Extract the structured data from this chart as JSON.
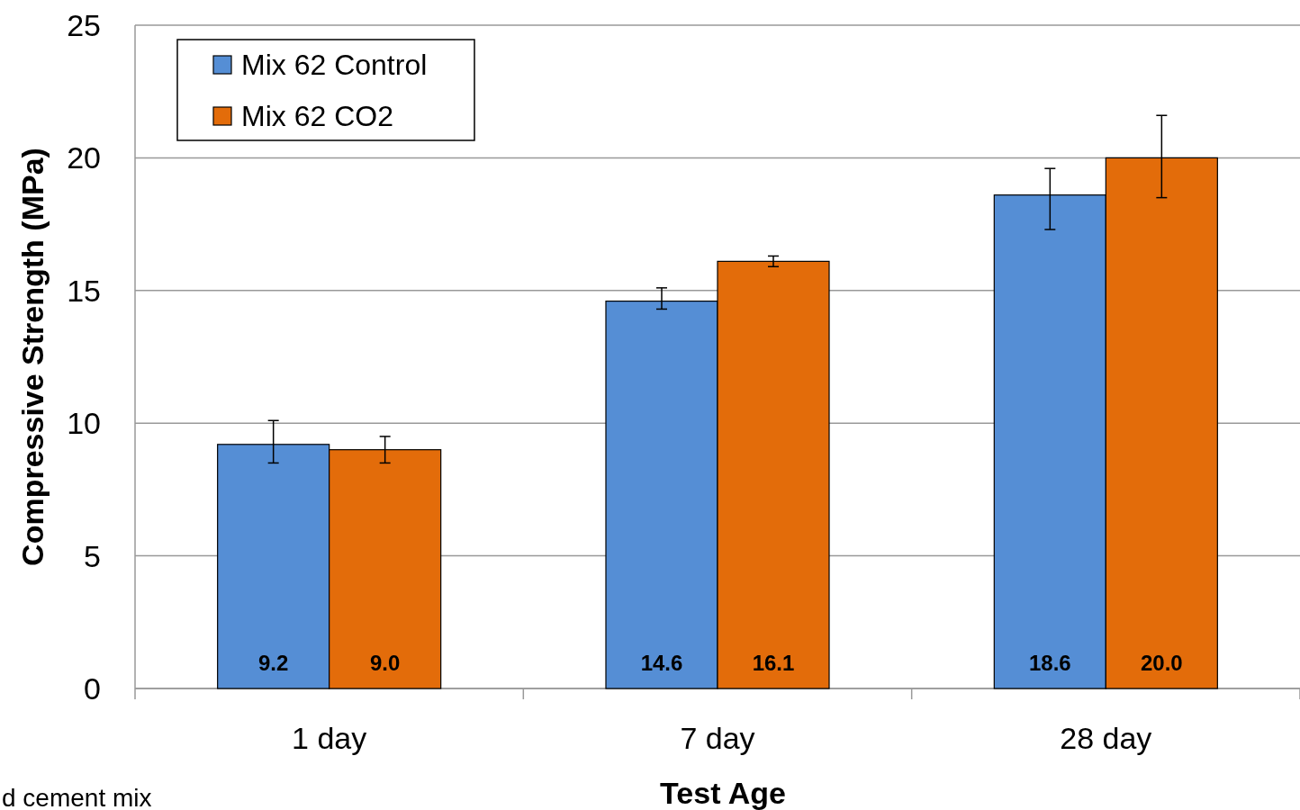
{
  "chart_data": {
    "type": "bar",
    "xlabel": "Test Age",
    "ylabel": "Compressive Strength (MPa)",
    "categories": [
      "1 day",
      "7 day",
      "28 day"
    ],
    "series": [
      {
        "name": "Mix 62 Control",
        "color": "#558ed5",
        "values": [
          9.2,
          14.6,
          18.6
        ],
        "value_labels": [
          "9.2",
          "14.6",
          "18.6"
        ],
        "errors": [
          [
            8.5,
            10.1
          ],
          [
            14.3,
            15.1
          ],
          [
            17.3,
            19.6
          ]
        ]
      },
      {
        "name": "Mix 62 CO2",
        "color": "#e36c0a",
        "values": [
          9.0,
          16.1,
          20.0
        ],
        "value_labels": [
          "9.0",
          "16.1",
          "20.0"
        ],
        "errors": [
          [
            8.5,
            9.5
          ],
          [
            15.9,
            16.3
          ],
          [
            18.5,
            21.6
          ]
        ]
      }
    ],
    "ylim": [
      0,
      25
    ],
    "yticks": [
      0,
      5,
      10,
      15,
      20,
      25
    ],
    "grid": "y",
    "legend": "top left",
    "annotations": [
      "d cement mix"
    ]
  }
}
